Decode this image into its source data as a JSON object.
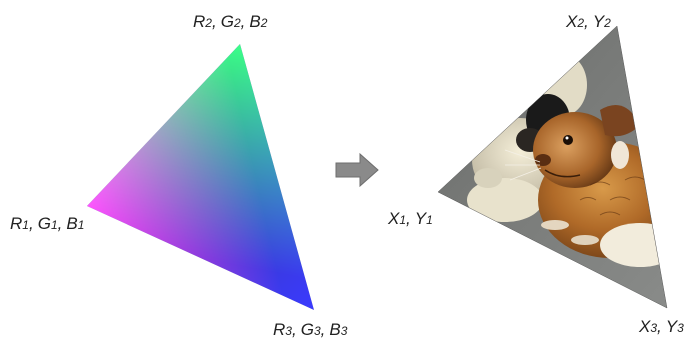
{
  "left_triangle": {
    "vertices": [
      {
        "id": "v1",
        "parts": [
          {
            "letter": "R",
            "index": "1"
          },
          {
            "letter": "G",
            "index": "1"
          },
          {
            "letter": "B",
            "index": "1"
          }
        ],
        "color": "#ff00ff"
      },
      {
        "id": "v2",
        "parts": [
          {
            "letter": "R",
            "index": "2"
          },
          {
            "letter": "G",
            "index": "2"
          },
          {
            "letter": "B",
            "index": "2"
          }
        ],
        "color": "#00ff00"
      },
      {
        "id": "v3",
        "parts": [
          {
            "letter": "R",
            "index": "3"
          },
          {
            "letter": "G",
            "index": "3"
          },
          {
            "letter": "B",
            "index": "3"
          }
        ],
        "color": "#0000ff"
      }
    ]
  },
  "arrow": {
    "icon": "arrow-right-icon",
    "color": "#808080"
  },
  "right_triangle": {
    "image_icon": "guinea-pig-photo",
    "background_color": "#7a7c7a",
    "vertices": [
      {
        "id": "v1",
        "parts": [
          {
            "letter": "X",
            "index": "1"
          },
          {
            "letter": "Y",
            "index": "1"
          }
        ]
      },
      {
        "id": "v2",
        "parts": [
          {
            "letter": "X",
            "index": "2"
          },
          {
            "letter": "Y",
            "index": "2"
          }
        ]
      },
      {
        "id": "v3",
        "parts": [
          {
            "letter": "X",
            "index": "3"
          },
          {
            "letter": "Y",
            "index": "3"
          }
        ]
      }
    ]
  }
}
